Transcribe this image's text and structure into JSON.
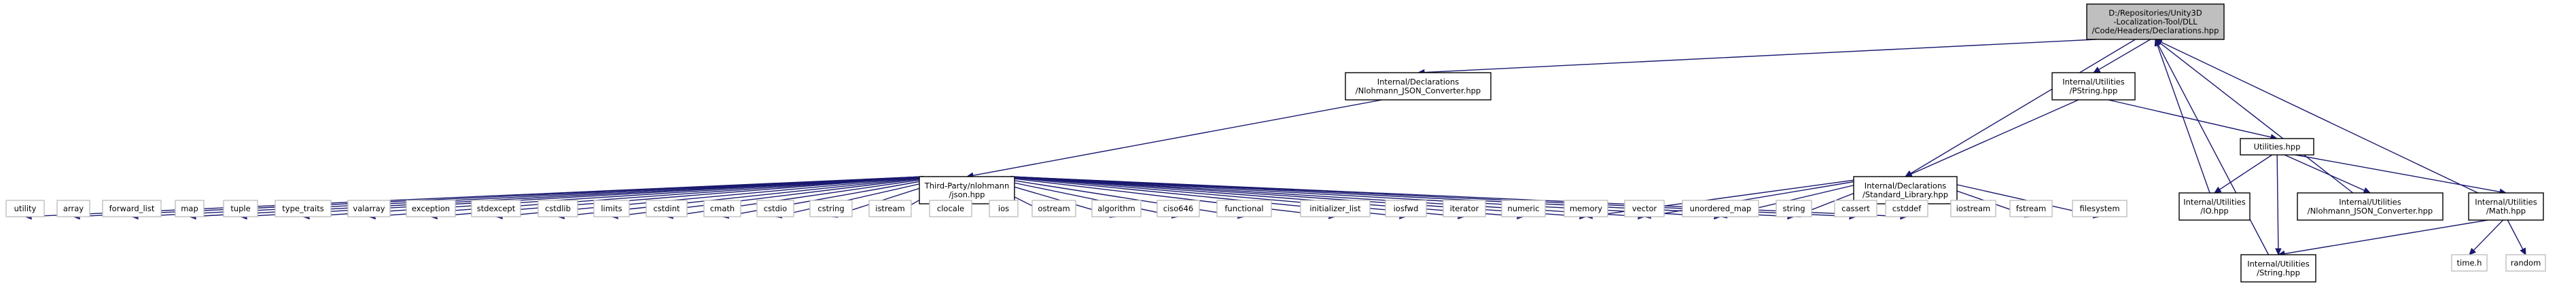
{
  "diagram": {
    "type": "include-dependency-graph",
    "nodes": [
      {
        "id": "root",
        "lines": [
          "D:/Repositories/Unity3D",
          "-Localization-Tool/DLL",
          "/Code/Headers/Declarations.hpp"
        ],
        "style": "root"
      },
      {
        "id": "nlohconv",
        "lines": [
          "Internal/Declarations",
          "/Nlohmann_JSON_Converter.hpp"
        ],
        "style": "inner"
      },
      {
        "id": "pstring",
        "lines": [
          "Internal/Utilities",
          "/PString.hpp"
        ],
        "style": "inner"
      },
      {
        "id": "json",
        "lines": [
          "Third-Party/nlohmann",
          "/json.hpp"
        ],
        "style": "inner"
      },
      {
        "id": "stdlib_hpp",
        "lines": [
          "Internal/Declarations",
          "/Standard_Library.hpp"
        ],
        "style": "inner"
      },
      {
        "id": "utilities",
        "lines": [
          "Utilities.hpp"
        ],
        "style": "inner"
      },
      {
        "id": "io",
        "lines": [
          "Internal/Utilities",
          "/IO.hpp"
        ],
        "style": "inner"
      },
      {
        "id": "uconv",
        "lines": [
          "Internal/Utilities",
          "/Nlohmann_JSON_Converter.hpp"
        ],
        "style": "inner"
      },
      {
        "id": "math",
        "lines": [
          "Internal/Utilities",
          "/Math.hpp"
        ],
        "style": "inner"
      },
      {
        "id": "string_hpp",
        "lines": [
          "Internal/Utilities",
          "/String.hpp"
        ],
        "style": "inner"
      },
      {
        "id": "utility",
        "lines": [
          "utility"
        ],
        "style": "leaf"
      },
      {
        "id": "array",
        "lines": [
          "array"
        ],
        "style": "leaf"
      },
      {
        "id": "forward_list",
        "lines": [
          "forward_list"
        ],
        "style": "leaf"
      },
      {
        "id": "map",
        "lines": [
          "map"
        ],
        "style": "leaf"
      },
      {
        "id": "tuple",
        "lines": [
          "tuple"
        ],
        "style": "leaf"
      },
      {
        "id": "type_traits",
        "lines": [
          "type_traits"
        ],
        "style": "leaf"
      },
      {
        "id": "valarray",
        "lines": [
          "valarray"
        ],
        "style": "leaf"
      },
      {
        "id": "exception",
        "lines": [
          "exception"
        ],
        "style": "leaf"
      },
      {
        "id": "stdexcept",
        "lines": [
          "stdexcept"
        ],
        "style": "leaf"
      },
      {
        "id": "cstdlib",
        "lines": [
          "cstdlib"
        ],
        "style": "leaf"
      },
      {
        "id": "limits",
        "lines": [
          "limits"
        ],
        "style": "leaf"
      },
      {
        "id": "cstdint",
        "lines": [
          "cstdint"
        ],
        "style": "leaf"
      },
      {
        "id": "cmath",
        "lines": [
          "cmath"
        ],
        "style": "leaf"
      },
      {
        "id": "cstdio",
        "lines": [
          "cstdio"
        ],
        "style": "leaf"
      },
      {
        "id": "cstring",
        "lines": [
          "cstring"
        ],
        "style": "leaf"
      },
      {
        "id": "istream",
        "lines": [
          "istream"
        ],
        "style": "leaf"
      },
      {
        "id": "clocale",
        "lines": [
          "clocale"
        ],
        "style": "leaf"
      },
      {
        "id": "ios",
        "lines": [
          "ios"
        ],
        "style": "leaf"
      },
      {
        "id": "ostream",
        "lines": [
          "ostream"
        ],
        "style": "leaf"
      },
      {
        "id": "algorithm",
        "lines": [
          "algorithm"
        ],
        "style": "leaf"
      },
      {
        "id": "ciso646",
        "lines": [
          "ciso646"
        ],
        "style": "leaf"
      },
      {
        "id": "functional",
        "lines": [
          "functional"
        ],
        "style": "leaf"
      },
      {
        "id": "initializer_list",
        "lines": [
          "initializer_list"
        ],
        "style": "leaf"
      },
      {
        "id": "iosfwd",
        "lines": [
          "iosfwd"
        ],
        "style": "leaf"
      },
      {
        "id": "iterator",
        "lines": [
          "iterator"
        ],
        "style": "leaf"
      },
      {
        "id": "numeric",
        "lines": [
          "numeric"
        ],
        "style": "leaf"
      },
      {
        "id": "memory",
        "lines": [
          "memory"
        ],
        "style": "leaf"
      },
      {
        "id": "vector",
        "lines": [
          "vector"
        ],
        "style": "leaf"
      },
      {
        "id": "unordered_map",
        "lines": [
          "unordered_map"
        ],
        "style": "leaf"
      },
      {
        "id": "string",
        "lines": [
          "string"
        ],
        "style": "leaf"
      },
      {
        "id": "cassert",
        "lines": [
          "cassert"
        ],
        "style": "leaf"
      },
      {
        "id": "cstddef",
        "lines": [
          "cstddef"
        ],
        "style": "leaf"
      },
      {
        "id": "iostream",
        "lines": [
          "iostream"
        ],
        "style": "leaf"
      },
      {
        "id": "fstream",
        "lines": [
          "fstream"
        ],
        "style": "leaf"
      },
      {
        "id": "filesystem",
        "lines": [
          "filesystem"
        ],
        "style": "leaf"
      },
      {
        "id": "time_h",
        "lines": [
          "time.h"
        ],
        "style": "leaf"
      },
      {
        "id": "random",
        "lines": [
          "random"
        ],
        "style": "leaf"
      }
    ],
    "edges": [
      [
        "root",
        "nlohconv"
      ],
      [
        "root",
        "pstring"
      ],
      [
        "root",
        "stdlib_hpp"
      ],
      [
        "io",
        "root"
      ],
      [
        "uconv",
        "root"
      ],
      [
        "math",
        "root"
      ],
      [
        "string_hpp",
        "root"
      ],
      [
        "nlohconv",
        "json"
      ],
      [
        "pstring",
        "stdlib_hpp"
      ],
      [
        "pstring",
        "utilities"
      ],
      [
        "json",
        "utility"
      ],
      [
        "json",
        "array"
      ],
      [
        "json",
        "forward_list"
      ],
      [
        "json",
        "map"
      ],
      [
        "json",
        "tuple"
      ],
      [
        "json",
        "type_traits"
      ],
      [
        "json",
        "valarray"
      ],
      [
        "json",
        "exception"
      ],
      [
        "json",
        "stdexcept"
      ],
      [
        "json",
        "cstdlib"
      ],
      [
        "json",
        "limits"
      ],
      [
        "json",
        "cstdint"
      ],
      [
        "json",
        "cmath"
      ],
      [
        "json",
        "cstdio"
      ],
      [
        "json",
        "cstring"
      ],
      [
        "json",
        "istream"
      ],
      [
        "json",
        "clocale"
      ],
      [
        "json",
        "ios"
      ],
      [
        "json",
        "ostream"
      ],
      [
        "json",
        "algorithm"
      ],
      [
        "json",
        "ciso646"
      ],
      [
        "json",
        "functional"
      ],
      [
        "json",
        "initializer_list"
      ],
      [
        "json",
        "iosfwd"
      ],
      [
        "json",
        "iterator"
      ],
      [
        "json",
        "numeric"
      ],
      [
        "json",
        "memory"
      ],
      [
        "json",
        "vector"
      ],
      [
        "json",
        "unordered_map"
      ],
      [
        "json",
        "string"
      ],
      [
        "json",
        "cassert"
      ],
      [
        "json",
        "cstddef"
      ],
      [
        "stdlib_hpp",
        "memory"
      ],
      [
        "stdlib_hpp",
        "vector"
      ],
      [
        "stdlib_hpp",
        "unordered_map"
      ],
      [
        "stdlib_hpp",
        "string"
      ],
      [
        "stdlib_hpp",
        "cassert"
      ],
      [
        "stdlib_hpp",
        "cstddef"
      ],
      [
        "stdlib_hpp",
        "iostream"
      ],
      [
        "stdlib_hpp",
        "fstream"
      ],
      [
        "stdlib_hpp",
        "filesystem"
      ],
      [
        "utilities",
        "io"
      ],
      [
        "utilities",
        "uconv"
      ],
      [
        "utilities",
        "math"
      ],
      [
        "utilities",
        "string_hpp"
      ],
      [
        "math",
        "string_hpp"
      ],
      [
        "math",
        "time_h"
      ],
      [
        "math",
        "random"
      ]
    ],
    "colors": {
      "edge": "#191970",
      "root_fill": "#bfbfbf",
      "leaf_border": "#bfbfbf",
      "node_border": "#000000",
      "text": "#000000",
      "background": "#ffffff"
    }
  }
}
